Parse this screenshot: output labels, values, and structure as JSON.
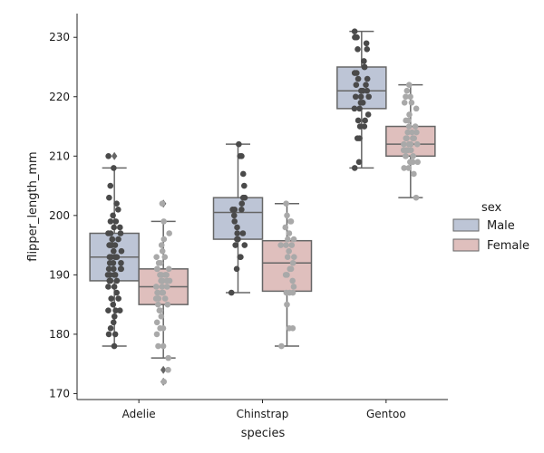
{
  "chart_data": {
    "type": "box",
    "xlabel": "species",
    "ylabel": "flipper_length_mm",
    "categories": [
      "Adelie",
      "Chinstrap",
      "Gentoo"
    ],
    "ylim": [
      169,
      234
    ],
    "yticks": [
      170,
      180,
      190,
      200,
      210,
      220,
      230
    ],
    "grid": false,
    "legend": {
      "title": "sex",
      "placement": "right",
      "entries": [
        {
          "label": "Male",
          "color": "#bdc5d6"
        },
        {
          "label": "Female",
          "color": "#dfbfbd"
        }
      ]
    },
    "series": [
      {
        "name": "Male",
        "box_color": "#bdc5d6",
        "point_color": "#4a4a4a",
        "boxes": [
          {
            "category": "Adelie",
            "whisker_low": 178,
            "q1": 189,
            "median": 193,
            "q3": 197,
            "whisker_high": 208,
            "outliers": [
              210
            ],
            "points": [
              178,
              180,
              180,
              181,
              182,
              183,
              184,
              184,
              184,
              185,
              186,
              186,
              187,
              188,
              188,
              189,
              189,
              189,
              190,
              190,
              190,
              190,
              191,
              191,
              191,
              191,
              192,
              192,
              192,
              193,
              193,
              193,
              193,
              194,
              194,
              195,
              195,
              195,
              195,
              196,
              196,
              196,
              197,
              197,
              197,
              198,
              198,
              199,
              199,
              200,
              201,
              202,
              203,
              205,
              208,
              210
            ]
          },
          {
            "category": "Chinstrap",
            "whisker_low": 187,
            "q1": 196,
            "median": 200.5,
            "q3": 203,
            "whisker_high": 212,
            "outliers": [],
            "points": [
              187,
              191,
              193,
              193,
              195,
              195,
              196,
              196,
              196,
              197,
              197,
              198,
              199,
              200,
              201,
              201,
              201,
              202,
              203,
              203,
              205,
              207,
              210,
              210,
              212
            ]
          },
          {
            "category": "Gentoo",
            "whisker_low": 208,
            "q1": 218,
            "median": 221,
            "q3": 225,
            "whisker_high": 231,
            "outliers": [],
            "points": [
              208,
              209,
              213,
              213,
              215,
              215,
              216,
              216,
              217,
              218,
              218,
              219,
              219,
              220,
              220,
              220,
              221,
              221,
              221,
              222,
              222,
              223,
              223,
              224,
              224,
              225,
              225,
              226,
              228,
              228,
              229,
              230,
              230,
              230,
              231
            ]
          }
        ]
      },
      {
        "name": "Female",
        "box_color": "#dfbfbd",
        "point_color": "#a9a9a9",
        "boxes": [
          {
            "category": "Adelie",
            "whisker_low": 176,
            "q1": 185,
            "median": 188,
            "q3": 191,
            "whisker_high": 199,
            "outliers": [
              172,
              174,
              202
            ],
            "points": [
              172,
              174,
              176,
              178,
              178,
              180,
              181,
              181,
              182,
              183,
              184,
              184,
              185,
              185,
              186,
              186,
              186,
              187,
              187,
              187,
              187,
              188,
              188,
              188,
              189,
              189,
              189,
              189,
              190,
              190,
              190,
              190,
              191,
              191,
              191,
              191,
              192,
              192,
              193,
              193,
              194,
              195,
              196,
              197,
              199,
              202
            ]
          },
          {
            "category": "Chinstrap",
            "whisker_low": 178,
            "q1": 187.25,
            "median": 192,
            "q3": 195.75,
            "whisker_high": 202,
            "outliers": [],
            "points": [
              178,
              181,
              181,
              185,
              187,
              187,
              187,
              188,
              189,
              190,
              190,
              191,
              191,
              192,
              193,
              193,
              194,
              195,
              195,
              195,
              196,
              196,
              197,
              198,
              199,
              199,
              200,
              202
            ]
          },
          {
            "category": "Gentoo",
            "whisker_low": 203,
            "q1": 210,
            "median": 212,
            "q3": 215,
            "whisker_high": 222,
            "outliers": [],
            "points": [
              203,
              207,
              208,
              208,
              209,
              209,
              209,
              210,
              210,
              210,
              211,
              211,
              211,
              211,
              212,
              212,
              212,
              212,
              213,
              213,
              213,
              213,
              214,
              214,
              214,
              215,
              215,
              216,
              216,
              217,
              218,
              219,
              219,
              220,
              220,
              221,
              222
            ]
          }
        ]
      }
    ]
  }
}
